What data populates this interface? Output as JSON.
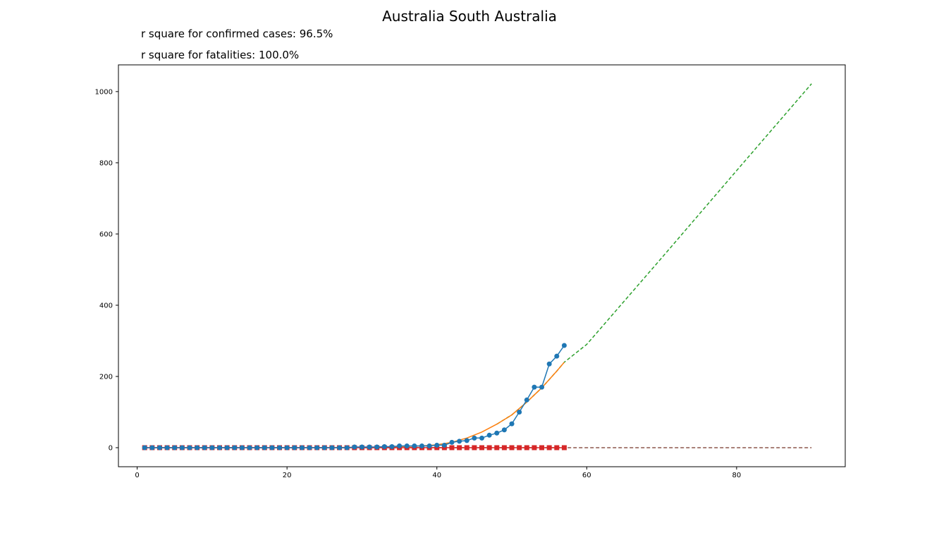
{
  "chart_data": {
    "type": "line",
    "title": "Australia South Australia",
    "annotations": [
      "r square for confirmed cases: 96.5%",
      "r square for fatalities: 100.0%"
    ],
    "xlabel": "",
    "ylabel": "",
    "xlim": [
      -2.5,
      94.5
    ],
    "ylim": [
      -53.5,
      1075
    ],
    "x_ticks": [
      0,
      20,
      40,
      60,
      80
    ],
    "y_ticks": [
      0,
      200,
      400,
      600,
      800,
      1000
    ],
    "grid": false,
    "series": [
      {
        "role": "confirmed",
        "color": "#1f77b4",
        "style": "line-marker-circle",
        "x": [
          1,
          2,
          3,
          4,
          5,
          6,
          7,
          8,
          9,
          10,
          11,
          12,
          13,
          14,
          15,
          16,
          17,
          18,
          19,
          20,
          21,
          22,
          23,
          24,
          25,
          26,
          27,
          28,
          29,
          30,
          31,
          32,
          33,
          34,
          35,
          36,
          37,
          38,
          39,
          40,
          41,
          42,
          43,
          44,
          45,
          46,
          47,
          48,
          49,
          50,
          51,
          52,
          53,
          54,
          55,
          56,
          57
        ],
        "values": [
          0,
          0,
          0,
          0,
          0,
          0,
          0,
          0,
          0,
          0,
          0,
          0,
          0,
          0,
          0,
          0,
          0,
          0,
          0,
          0,
          0,
          0,
          0,
          0,
          0,
          0,
          0,
          0,
          2,
          2,
          2,
          2,
          3,
          3,
          5,
          5,
          5,
          5,
          5,
          7,
          7,
          15,
          18,
          20,
          27,
          27,
          35,
          41,
          50,
          67,
          100,
          134,
          170,
          170,
          235,
          257,
          287
        ]
      },
      {
        "role": "confirmed-fit",
        "color": "#ff7f0e",
        "style": "solid",
        "x": [
          1,
          10,
          20,
          30,
          35,
          38,
          40,
          42,
          44,
          46,
          48,
          50,
          52,
          54,
          56,
          57
        ],
        "values": [
          0,
          0,
          0,
          1,
          3,
          5,
          8,
          15,
          27,
          44,
          66,
          92,
          128,
          168,
          215,
          240
        ]
      },
      {
        "role": "confirmed-projection",
        "color": "#2ca02c",
        "style": "dashed",
        "x": [
          48,
          50,
          52,
          54,
          56,
          57,
          60,
          70,
          80,
          90
        ],
        "values": [
          66,
          92,
          128,
          168,
          215,
          240,
          290,
          533,
          778,
          1022
        ]
      },
      {
        "role": "fatalities",
        "color": "#d62728",
        "style": "line-marker-square",
        "x": [
          1,
          2,
          3,
          4,
          5,
          6,
          7,
          8,
          9,
          10,
          11,
          12,
          13,
          14,
          15,
          16,
          17,
          18,
          19,
          20,
          21,
          22,
          23,
          24,
          25,
          26,
          27,
          28,
          29,
          30,
          31,
          32,
          33,
          34,
          35,
          36,
          37,
          38,
          39,
          40,
          41,
          42,
          43,
          44,
          45,
          46,
          47,
          48,
          49,
          50,
          51,
          52,
          53,
          54,
          55,
          56,
          57
        ],
        "values": [
          0,
          0,
          0,
          0,
          0,
          0,
          0,
          0,
          0,
          0,
          0,
          0,
          0,
          0,
          0,
          0,
          0,
          0,
          0,
          0,
          0,
          0,
          0,
          0,
          0,
          0,
          0,
          0,
          0,
          0,
          0,
          0,
          0,
          0,
          0,
          0,
          0,
          0,
          0,
          0,
          0,
          0,
          0,
          0,
          0,
          0,
          0,
          0,
          0,
          0,
          0,
          0,
          0,
          0,
          0,
          0,
          0
        ]
      },
      {
        "role": "fatalities-projection",
        "color": "#8c564b",
        "style": "dashed",
        "x": [
          1,
          90
        ],
        "values": [
          0,
          0
        ]
      }
    ]
  }
}
